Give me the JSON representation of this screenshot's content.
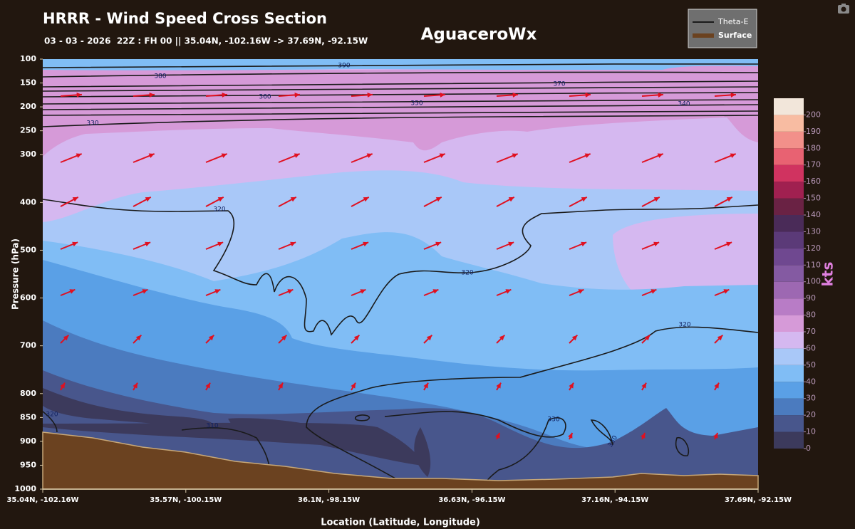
{
  "chart_data": {
    "type": "cross-section",
    "title": "HRRR - Wind Speed Cross Section",
    "subtitle": "03 - 03 - 2026  22Z : FH 00 || 35.04N, -102.16W -> 37.69N, -92.15W",
    "brand": "AguaceroWx",
    "xlabel": "Location (Latitude, Longitude)",
    "ylabel": "Pressure (hPa)",
    "categories": [
      "35.04N, -102.16W",
      "35.57N, -100.15W",
      "36.1N, -98.15W",
      "36.63N, -96.15W",
      "37.16N, -94.15W",
      "37.69N, -92.15W"
    ],
    "ylim": [
      1000,
      100
    ],
    "yticks": [
      100,
      150,
      200,
      250,
      300,
      400,
      500,
      600,
      700,
      800,
      850,
      900,
      950,
      1000
    ],
    "series": [
      {
        "name": "Theta-E",
        "color": "#1a1a1a"
      },
      {
        "name": "Surface",
        "color": "#6b4220"
      }
    ],
    "contour_labels": [
      390,
      380,
      370,
      360,
      350,
      340,
      330,
      320,
      320,
      320,
      330,
      330,
      320,
      310
    ],
    "colorbar": {
      "label": "kts",
      "lim": [
        0,
        210
      ],
      "ticks": [
        0,
        10,
        20,
        30,
        40,
        50,
        60,
        70,
        80,
        90,
        100,
        110,
        120,
        130,
        140,
        150,
        160,
        170,
        180,
        190,
        200
      ],
      "colors": [
        "#3c3a5c",
        "#48568c",
        "#4b7bbf",
        "#5aa0e6",
        "#80bdf5",
        "#a9c8f8",
        "#d5b8f0",
        "#d69ad8",
        "#b87cc6",
        "#9d68b2",
        "#845aa2",
        "#6f4890",
        "#5b3a78",
        "#4a2b58",
        "#6a2244",
        "#a02050",
        "#d03360",
        "#e86272",
        "#f2908a",
        "#f8bca2",
        "#f2e6da"
      ]
    }
  }
}
